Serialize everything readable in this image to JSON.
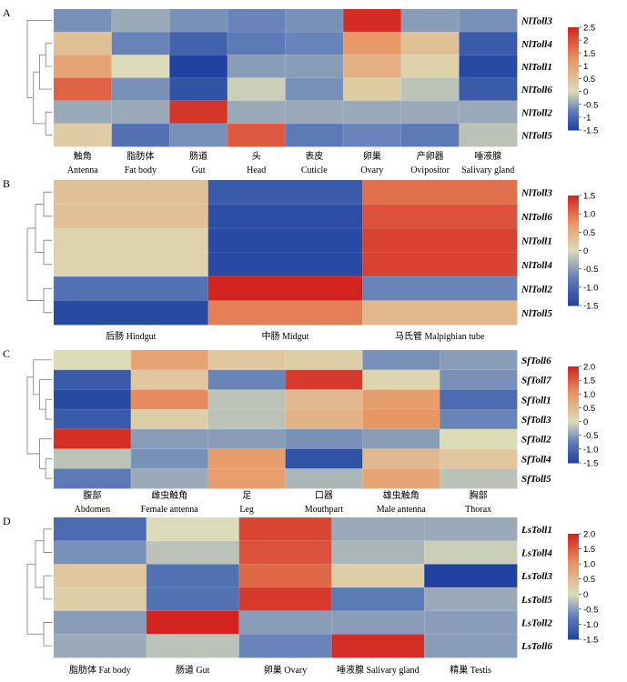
{
  "colors": {
    "low": "#2142a0",
    "mid": "#dcdcb8",
    "high": "#d2231f"
  },
  "chart_data": [
    {
      "type": "heatmap",
      "panel": "A",
      "rows": [
        "NlToll3",
        "NlToll4",
        "NlToll1",
        "NlToll6",
        "NlToll2",
        "NlToll5"
      ],
      "columns": [
        {
          "zh": "触角",
          "en": "Antenna"
        },
        {
          "zh": "脂肪体",
          "en": "Fat body"
        },
        {
          "zh": "肠道",
          "en": "Gut"
        },
        {
          "zh": "头",
          "en": "Head"
        },
        {
          "zh": "表皮",
          "en": "Cuticle"
        },
        {
          "zh": "卵巢",
          "en": "Ovary"
        },
        {
          "zh": "产卵器",
          "en": "Ovipositor"
        },
        {
          "zh": "唾液腺",
          "en": "Salivary gland"
        }
      ],
      "values": [
        [
          -0.6,
          -0.4,
          -0.6,
          -0.7,
          -0.6,
          2.4,
          -0.5,
          -0.6
        ],
        [
          0.5,
          -0.7,
          -1.1,
          -0.8,
          -0.7,
          1.2,
          0.5,
          -1.2
        ],
        [
          1.0,
          0.0,
          -1.5,
          -0.5,
          -0.5,
          0.8,
          0.2,
          -1.4
        ],
        [
          1.8,
          -0.6,
          -1.3,
          -0.1,
          -0.6,
          0.3,
          -0.2,
          -1.2
        ],
        [
          -0.4,
          -0.4,
          2.3,
          -0.4,
          -0.4,
          -0.4,
          -0.4,
          -0.4
        ],
        [
          0.3,
          -0.9,
          -0.6,
          1.9,
          -0.8,
          -0.7,
          -0.8,
          -0.2
        ]
      ],
      "scale": {
        "min": -1.5,
        "max": 2.5,
        "ticks": [
          "2.5",
          "2",
          "1.5",
          "1",
          "0.5",
          "0",
          "-0.5",
          "-1",
          "-1.5"
        ],
        "tick_values": [
          2.5,
          2,
          1.5,
          1,
          0.5,
          0,
          -0.5,
          -1,
          -1.5
        ]
      }
    },
    {
      "type": "heatmap",
      "panel": "B",
      "rows": [
        "NlToll3",
        "NlToll6",
        "NlToll1",
        "NlToll4",
        "NlToll2",
        "NlToll5"
      ],
      "columns": [
        {
          "zh": "后肠",
          "en": "Hindgut"
        },
        {
          "zh": "中肠",
          "en": "Midgut"
        },
        {
          "zh": "马氏管",
          "en": "Malpighian tube"
        }
      ],
      "values": [
        [
          0.3,
          -1.2,
          1.0
        ],
        [
          0.3,
          -1.35,
          1.2
        ],
        [
          0.1,
          -1.4,
          1.3
        ],
        [
          0.1,
          -1.4,
          1.3
        ],
        [
          -0.9,
          1.5,
          -0.7
        ],
        [
          -1.4,
          0.9,
          0.4
        ]
      ],
      "scale": {
        "min": -1.5,
        "max": 1.5,
        "ticks": [
          "1.5",
          "1.0",
          "0.5",
          "0",
          "-0.5",
          "-1.0",
          "-1.5"
        ],
        "tick_values": [
          1.5,
          1.0,
          0.5,
          0,
          -0.5,
          -1.0,
          -1.5
        ]
      }
    },
    {
      "type": "heatmap",
      "panel": "C",
      "rows": [
        "SfToll6",
        "SfToll7",
        "SfToll1",
        "SfToll3",
        "SfToll2",
        "SfToll4",
        "SfToll5"
      ],
      "columns": [
        {
          "zh": "腹部",
          "en": "Abdomen"
        },
        {
          "zh": "雌虫触角",
          "en": "Female antenna"
        },
        {
          "zh": "足",
          "en": "Leg"
        },
        {
          "zh": "口器",
          "en": "Mouthpart"
        },
        {
          "zh": "雄虫触角",
          "en": "Male antenna"
        },
        {
          "zh": "胸部",
          "en": "Thorax"
        }
      ],
      "values": [
        [
          0.0,
          0.8,
          0.3,
          0.2,
          -0.6,
          -0.5
        ],
        [
          -1.2,
          0.3,
          -0.7,
          1.8,
          0.1,
          -0.6
        ],
        [
          -1.4,
          1.1,
          -0.2,
          0.5,
          0.9,
          -1.0
        ],
        [
          -1.2,
          0.2,
          -0.2,
          0.6,
          1.0,
          -0.7
        ],
        [
          1.9,
          -0.5,
          -0.5,
          -0.6,
          -0.5,
          0.0
        ],
        [
          -0.2,
          -0.6,
          0.9,
          -1.3,
          0.5,
          0.3
        ],
        [
          -0.8,
          -0.4,
          0.9,
          -0.3,
          0.8,
          -0.2
        ]
      ],
      "scale": {
        "min": -1.5,
        "max": 2.0,
        "ticks": [
          "2.0",
          "1.5",
          "1.0",
          "0.5",
          "0",
          "-0.5",
          "-1.0",
          "-1.5"
        ],
        "tick_values": [
          2.0,
          1.5,
          1.0,
          0.5,
          0,
          -0.5,
          -1.0,
          -1.5
        ]
      }
    },
    {
      "type": "heatmap",
      "panel": "D",
      "rows": [
        "LsToll1",
        "LsToll4",
        "LsToll3",
        "LsToll5",
        "LsToll2",
        "LsToll6"
      ],
      "columns": [
        {
          "zh": "脂肪体",
          "en": "Fat body"
        },
        {
          "zh": "肠道",
          "en": "Gut"
        },
        {
          "zh": "卵巢",
          "en": "Ovary"
        },
        {
          "zh": "唾液腺",
          "en": "Salivary gland"
        },
        {
          "zh": "精巢",
          "en": "Testis"
        }
      ],
      "values": [
        [
          -1.0,
          0.0,
          1.7,
          -0.4,
          -0.4
        ],
        [
          -0.6,
          -0.2,
          1.6,
          -0.3,
          -0.1
        ],
        [
          0.3,
          -0.9,
          1.4,
          0.2,
          -1.5
        ],
        [
          0.2,
          -0.9,
          1.8,
          -0.8,
          -0.4
        ],
        [
          -0.5,
          2.0,
          -0.5,
          -0.5,
          -0.5
        ],
        [
          -0.4,
          -0.2,
          -0.7,
          1.9,
          -0.5
        ]
      ],
      "scale": {
        "min": -1.5,
        "max": 2.0,
        "ticks": [
          "2.0",
          "1.5",
          "1.0",
          "0.5",
          "0",
          "-0.5",
          "-1.0",
          "-1.5"
        ],
        "tick_values": [
          2.0,
          1.5,
          1.0,
          0.5,
          0,
          -0.5,
          -1.0,
          -1.5
        ]
      }
    }
  ]
}
